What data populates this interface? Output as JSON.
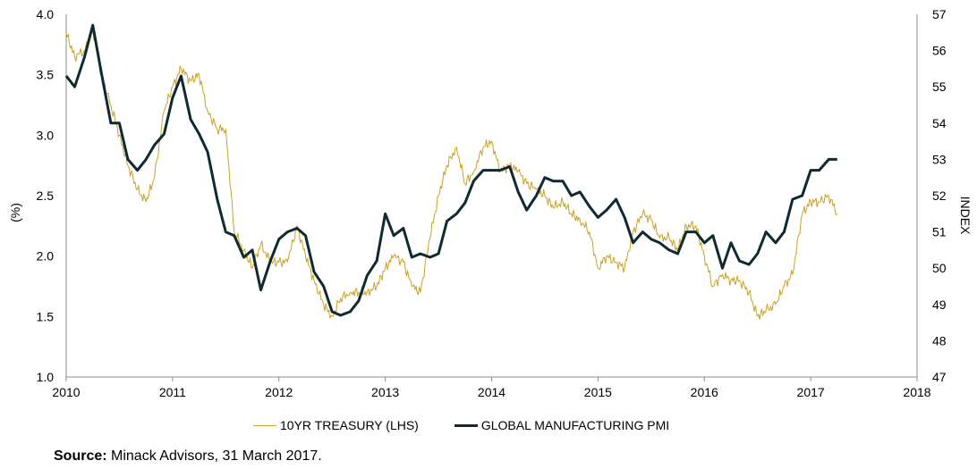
{
  "chart_data": {
    "type": "line",
    "title": "",
    "ylabel_left": "(%)",
    "ylabel_right": "INDEX",
    "x_ticks": [
      "2010",
      "2011",
      "2012",
      "2013",
      "2014",
      "2015",
      "2016",
      "2017",
      "2018"
    ],
    "x_range": [
      2010,
      2018
    ],
    "y_left_range": [
      1.0,
      4.0
    ],
    "y_left_ticks": [
      "1.0",
      "1.5",
      "2.0",
      "2.5",
      "3.0",
      "3.5",
      "4.0"
    ],
    "y_right_range": [
      47,
      57
    ],
    "y_right_ticks": [
      "47",
      "48",
      "49",
      "50",
      "51",
      "52",
      "53",
      "54",
      "55",
      "56",
      "57"
    ],
    "grid": false,
    "legend_position": "bottom",
    "series": [
      {
        "name": "10YR TREASURY (LHS)",
        "axis": "left",
        "color": "#C9A227",
        "points": [
          [
            2010.0,
            3.84
          ],
          [
            2010.08,
            3.65
          ],
          [
            2010.17,
            3.7
          ],
          [
            2010.25,
            3.88
          ],
          [
            2010.33,
            3.5
          ],
          [
            2010.42,
            3.25
          ],
          [
            2010.5,
            3.0
          ],
          [
            2010.58,
            2.75
          ],
          [
            2010.67,
            2.55
          ],
          [
            2010.75,
            2.45
          ],
          [
            2010.83,
            2.65
          ],
          [
            2010.92,
            3.2
          ],
          [
            2011.0,
            3.4
          ],
          [
            2011.08,
            3.55
          ],
          [
            2011.17,
            3.45
          ],
          [
            2011.25,
            3.5
          ],
          [
            2011.33,
            3.2
          ],
          [
            2011.42,
            3.05
          ],
          [
            2011.5,
            3.05
          ],
          [
            2011.58,
            2.2
          ],
          [
            2011.67,
            2.05
          ],
          [
            2011.75,
            1.9
          ],
          [
            2011.83,
            2.1
          ],
          [
            2011.92,
            1.95
          ],
          [
            2012.0,
            1.95
          ],
          [
            2012.08,
            1.95
          ],
          [
            2012.17,
            2.25
          ],
          [
            2012.25,
            2.0
          ],
          [
            2012.33,
            1.8
          ],
          [
            2012.42,
            1.6
          ],
          [
            2012.5,
            1.5
          ],
          [
            2012.58,
            1.65
          ],
          [
            2012.67,
            1.7
          ],
          [
            2012.75,
            1.7
          ],
          [
            2012.83,
            1.7
          ],
          [
            2012.92,
            1.75
          ],
          [
            2013.0,
            1.9
          ],
          [
            2013.08,
            2.0
          ],
          [
            2013.17,
            1.95
          ],
          [
            2013.25,
            1.75
          ],
          [
            2013.33,
            1.7
          ],
          [
            2013.42,
            2.15
          ],
          [
            2013.5,
            2.5
          ],
          [
            2013.58,
            2.75
          ],
          [
            2013.67,
            2.9
          ],
          [
            2013.75,
            2.6
          ],
          [
            2013.83,
            2.7
          ],
          [
            2013.92,
            2.9
          ],
          [
            2014.0,
            2.95
          ],
          [
            2014.08,
            2.7
          ],
          [
            2014.17,
            2.75
          ],
          [
            2014.25,
            2.7
          ],
          [
            2014.33,
            2.6
          ],
          [
            2014.42,
            2.55
          ],
          [
            2014.5,
            2.5
          ],
          [
            2014.58,
            2.4
          ],
          [
            2014.67,
            2.45
          ],
          [
            2014.75,
            2.35
          ],
          [
            2014.83,
            2.3
          ],
          [
            2014.92,
            2.2
          ],
          [
            2015.0,
            1.9
          ],
          [
            2015.08,
            2.0
          ],
          [
            2015.17,
            1.95
          ],
          [
            2015.25,
            1.9
          ],
          [
            2015.33,
            2.2
          ],
          [
            2015.42,
            2.35
          ],
          [
            2015.5,
            2.3
          ],
          [
            2015.58,
            2.15
          ],
          [
            2015.67,
            2.15
          ],
          [
            2015.75,
            2.05
          ],
          [
            2015.83,
            2.25
          ],
          [
            2015.92,
            2.25
          ],
          [
            2016.0,
            2.0
          ],
          [
            2016.08,
            1.75
          ],
          [
            2016.17,
            1.85
          ],
          [
            2016.25,
            1.8
          ],
          [
            2016.33,
            1.8
          ],
          [
            2016.42,
            1.7
          ],
          [
            2016.5,
            1.5
          ],
          [
            2016.58,
            1.55
          ],
          [
            2016.67,
            1.6
          ],
          [
            2016.75,
            1.75
          ],
          [
            2016.83,
            1.85
          ],
          [
            2016.92,
            2.35
          ],
          [
            2017.0,
            2.45
          ],
          [
            2017.08,
            2.45
          ],
          [
            2017.17,
            2.5
          ],
          [
            2017.25,
            2.35
          ]
        ]
      },
      {
        "name": "GLOBAL MANUFACTURING PMI",
        "axis": "right",
        "color": "#0F2A30",
        "points": [
          [
            2010.0,
            55.3
          ],
          [
            2010.08,
            55.0
          ],
          [
            2010.17,
            55.8
          ],
          [
            2010.25,
            56.7
          ],
          [
            2010.33,
            55.4
          ],
          [
            2010.42,
            54.0
          ],
          [
            2010.5,
            54.0
          ],
          [
            2010.58,
            53.0
          ],
          [
            2010.67,
            52.7
          ],
          [
            2010.75,
            53.0
          ],
          [
            2010.83,
            53.4
          ],
          [
            2010.92,
            53.7
          ],
          [
            2011.0,
            54.7
          ],
          [
            2011.08,
            55.3
          ],
          [
            2011.17,
            54.1
          ],
          [
            2011.25,
            53.7
          ],
          [
            2011.33,
            53.2
          ],
          [
            2011.42,
            51.9
          ],
          [
            2011.5,
            51.0
          ],
          [
            2011.58,
            50.9
          ],
          [
            2011.67,
            50.3
          ],
          [
            2011.75,
            50.5
          ],
          [
            2011.83,
            49.4
          ],
          [
            2011.92,
            50.2
          ],
          [
            2012.0,
            50.8
          ],
          [
            2012.08,
            51.0
          ],
          [
            2012.17,
            51.1
          ],
          [
            2012.25,
            50.9
          ],
          [
            2012.33,
            49.9
          ],
          [
            2012.42,
            49.5
          ],
          [
            2012.5,
            48.8
          ],
          [
            2012.58,
            48.7
          ],
          [
            2012.67,
            48.8
          ],
          [
            2012.75,
            49.1
          ],
          [
            2012.83,
            49.8
          ],
          [
            2012.92,
            50.2
          ],
          [
            2013.0,
            51.5
          ],
          [
            2013.08,
            50.9
          ],
          [
            2013.17,
            51.1
          ],
          [
            2013.25,
            50.3
          ],
          [
            2013.33,
            50.4
          ],
          [
            2013.42,
            50.3
          ],
          [
            2013.5,
            50.4
          ],
          [
            2013.58,
            51.3
          ],
          [
            2013.67,
            51.5
          ],
          [
            2013.75,
            51.8
          ],
          [
            2013.83,
            52.4
          ],
          [
            2013.92,
            52.7
          ],
          [
            2014.0,
            52.7
          ],
          [
            2014.08,
            52.7
          ],
          [
            2014.17,
            52.8
          ],
          [
            2014.25,
            52.1
          ],
          [
            2014.33,
            51.6
          ],
          [
            2014.42,
            52.0
          ],
          [
            2014.5,
            52.5
          ],
          [
            2014.58,
            52.4
          ],
          [
            2014.67,
            52.4
          ],
          [
            2014.75,
            52.0
          ],
          [
            2014.83,
            52.1
          ],
          [
            2014.92,
            51.7
          ],
          [
            2015.0,
            51.4
          ],
          [
            2015.08,
            51.6
          ],
          [
            2015.17,
            51.9
          ],
          [
            2015.25,
            51.4
          ],
          [
            2015.33,
            50.7
          ],
          [
            2015.42,
            51.0
          ],
          [
            2015.5,
            50.8
          ],
          [
            2015.58,
            50.7
          ],
          [
            2015.67,
            50.5
          ],
          [
            2015.75,
            50.4
          ],
          [
            2015.83,
            51.0
          ],
          [
            2015.92,
            51.0
          ],
          [
            2016.0,
            50.7
          ],
          [
            2016.08,
            50.9
          ],
          [
            2016.17,
            50.0
          ],
          [
            2016.25,
            50.7
          ],
          [
            2016.33,
            50.2
          ],
          [
            2016.42,
            50.1
          ],
          [
            2016.5,
            50.4
          ],
          [
            2016.58,
            51.0
          ],
          [
            2016.67,
            50.7
          ],
          [
            2016.75,
            51.0
          ],
          [
            2016.83,
            51.9
          ],
          [
            2016.92,
            52.0
          ],
          [
            2017.0,
            52.7
          ],
          [
            2017.08,
            52.7
          ],
          [
            2017.17,
            53.0
          ],
          [
            2017.25,
            53.0
          ]
        ]
      }
    ]
  },
  "legend": {
    "items": [
      "10YR TREASURY (LHS)",
      "GLOBAL MANUFACTURING PMI"
    ]
  },
  "source": {
    "label": "Source:",
    "text": " Minack Advisors, 31 March 2017."
  }
}
